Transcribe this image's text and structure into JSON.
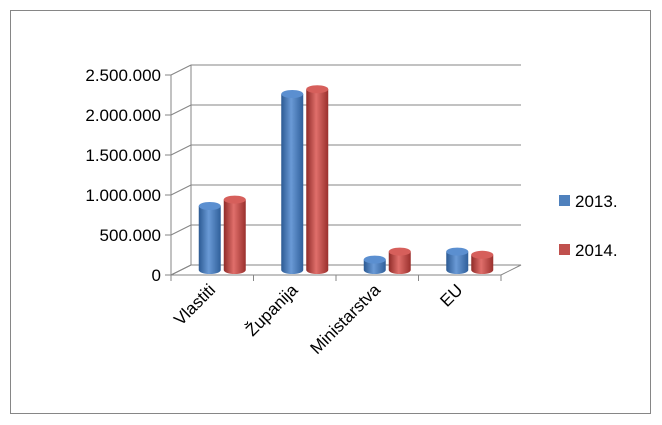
{
  "chart_data": {
    "type": "bar",
    "title": "",
    "xlabel": "",
    "ylabel": "",
    "categories": [
      "Vlastiti",
      "Županija",
      "Ministarstva",
      "EU"
    ],
    "series": [
      {
        "name": "2013.",
        "color": "#4F81BD",
        "values": [
          800000,
          2200000,
          130000,
          230000
        ]
      },
      {
        "name": "2014.",
        "color": "#C0504D",
        "values": [
          880000,
          2260000,
          230000,
          190000
        ]
      }
    ],
    "ylim": [
      0,
      2500000
    ],
    "yticks": [
      "0",
      "500.000",
      "1.000.000",
      "1.500.000",
      "2.000.000",
      "2.500.000"
    ],
    "grid": true,
    "legend_position": "right",
    "style": "3d-cylinder"
  }
}
